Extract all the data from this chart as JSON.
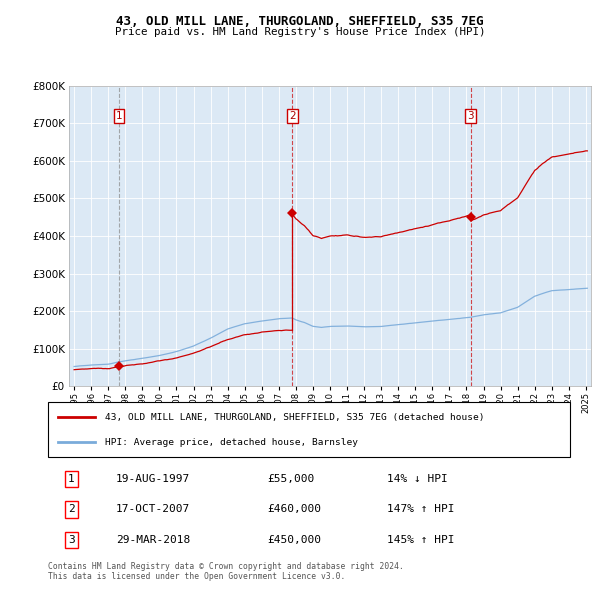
{
  "title": "43, OLD MILL LANE, THURGOLAND, SHEFFIELD, S35 7EG",
  "subtitle": "Price paid vs. HM Land Registry's House Price Index (HPI)",
  "legend_line1": "43, OLD MILL LANE, THURGOLAND, SHEFFIELD, S35 7EG (detached house)",
  "legend_line2": "HPI: Average price, detached house, Barnsley",
  "footer1": "Contains HM Land Registry data © Crown copyright and database right 2024.",
  "footer2": "This data is licensed under the Open Government Licence v3.0.",
  "sales": [
    {
      "label": "1",
      "date": "19-AUG-1997",
      "price": 55000,
      "year": 1997.63,
      "hpi_pct": "14% ↓ HPI"
    },
    {
      "label": "2",
      "date": "17-OCT-2007",
      "price": 460000,
      "year": 2007.79,
      "hpi_pct": "147% ↑ HPI"
    },
    {
      "label": "3",
      "date": "29-MAR-2018",
      "price": 450000,
      "year": 2018.24,
      "hpi_pct": "145% ↑ HPI"
    }
  ],
  "property_color": "#cc0000",
  "hpi_color": "#7aabda",
  "background_color": "#dce9f5",
  "ylim": [
    0,
    800000
  ],
  "yticks": [
    0,
    100000,
    200000,
    300000,
    400000,
    500000,
    600000,
    700000,
    800000
  ],
  "xlim_start": 1994.7,
  "xlim_end": 2025.3
}
